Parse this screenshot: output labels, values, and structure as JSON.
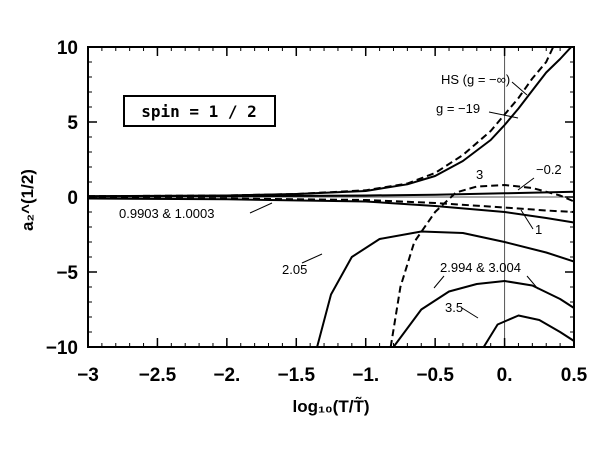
{
  "chart_data": {
    "type": "line",
    "xlabel": "log₁₀(T/T̃)",
    "ylabel": "a₂^(1/2)",
    "xlim": [
      -3,
      0.5
    ],
    "ylim": [
      -10,
      10
    ],
    "x_ticks": [
      -3,
      -2.5,
      -2,
      -1.5,
      -1,
      -0.5,
      0,
      0.5
    ],
    "x_tick_labels": [
      "−3",
      "−2.5",
      "−2.",
      "−1.5",
      "−1.",
      "−0.5",
      "0.",
      "0.5"
    ],
    "y_ticks": [
      -10,
      -5,
      0,
      5,
      10
    ],
    "y_tick_labels": [
      "−10",
      "−5",
      "0",
      "5",
      "10"
    ],
    "grid": false,
    "reference_lines": {
      "horizontal_y": 0,
      "vertical_x": 0
    },
    "box_annotation": "spin = 1 / 2",
    "series": [
      {
        "name": "HS (g = −∞)",
        "style": "dashed",
        "points": [
          [
            -3,
            0.05
          ],
          [
            -2,
            0.1
          ],
          [
            -1.5,
            0.2
          ],
          [
            -1,
            0.45
          ],
          [
            -0.7,
            0.9
          ],
          [
            -0.5,
            1.6
          ],
          [
            -0.3,
            2.8
          ],
          [
            -0.1,
            4.4
          ],
          [
            0,
            5.5
          ],
          [
            0.1,
            6.6
          ],
          [
            0.2,
            7.9
          ],
          [
            0.3,
            9.0
          ],
          [
            0.35,
            10
          ]
        ]
      },
      {
        "name": "g = −19",
        "style": "solid",
        "points": [
          [
            -3,
            0.05
          ],
          [
            -2,
            0.1
          ],
          [
            -1.5,
            0.2
          ],
          [
            -1,
            0.4
          ],
          [
            -0.7,
            0.85
          ],
          [
            -0.5,
            1.4
          ],
          [
            -0.3,
            2.4
          ],
          [
            -0.1,
            3.8
          ],
          [
            0,
            4.8
          ],
          [
            0.1,
            5.9
          ],
          [
            0.2,
            7.1
          ],
          [
            0.3,
            8.3
          ],
          [
            0.4,
            9.2
          ],
          [
            0.48,
            10
          ]
        ]
      },
      {
        "name": "−0.2",
        "style": "solid",
        "points": [
          [
            -3,
            0.05
          ],
          [
            -2,
            0.05
          ],
          [
            -1,
            0.1
          ],
          [
            -0.5,
            0.15
          ],
          [
            0,
            0.25
          ],
          [
            0.5,
            0.35
          ]
        ]
      },
      {
        "name": "3",
        "style": "dashed",
        "points": [
          [
            -0.82,
            -10
          ],
          [
            -0.75,
            -6
          ],
          [
            -0.65,
            -3
          ],
          [
            -0.5,
            -1
          ],
          [
            -0.35,
            0.3
          ],
          [
            -0.2,
            0.7
          ],
          [
            0,
            0.8
          ],
          [
            0.2,
            0.6
          ],
          [
            0.4,
            0.1
          ],
          [
            0.5,
            -0.3
          ]
        ]
      },
      {
        "name": "1",
        "style": "dashed",
        "points": [
          [
            -3,
            -0.05
          ],
          [
            -2,
            -0.1
          ],
          [
            -1,
            -0.2
          ],
          [
            -0.5,
            -0.4
          ],
          [
            0,
            -0.7
          ],
          [
            0.3,
            -0.9
          ],
          [
            0.5,
            -1.0
          ]
        ]
      },
      {
        "name": "0.9903 & 1.0003",
        "style": "solid",
        "points": [
          [
            -3,
            -0.1
          ],
          [
            -2,
            -0.15
          ],
          [
            -1,
            -0.3
          ],
          [
            -0.5,
            -0.6
          ],
          [
            0,
            -1.0
          ],
          [
            0.3,
            -1.4
          ],
          [
            0.5,
            -1.7
          ]
        ]
      },
      {
        "name": "2.05",
        "style": "solid",
        "points": [
          [
            -1.35,
            -10
          ],
          [
            -1.25,
            -6.5
          ],
          [
            -1.1,
            -4
          ],
          [
            -0.9,
            -2.8
          ],
          [
            -0.6,
            -2.3
          ],
          [
            -0.3,
            -2.4
          ],
          [
            0,
            -3.0
          ],
          [
            0.3,
            -3.7
          ],
          [
            0.5,
            -4.3
          ]
        ]
      },
      {
        "name": "2.994 & 3.004",
        "style": "solid",
        "points": [
          [
            -0.8,
            -10
          ],
          [
            -0.6,
            -7.5
          ],
          [
            -0.4,
            -6.3
          ],
          [
            -0.2,
            -5.8
          ],
          [
            0,
            -5.6
          ],
          [
            0.2,
            -5.9
          ],
          [
            0.4,
            -6.8
          ],
          [
            0.5,
            -7.4
          ]
        ]
      },
      {
        "name": "3.5",
        "style": "solid",
        "points": [
          [
            -0.15,
            -10
          ],
          [
            -0.05,
            -8.5
          ],
          [
            0.1,
            -7.9
          ],
          [
            0.25,
            -8.2
          ],
          [
            0.4,
            -9.0
          ],
          [
            0.5,
            -9.6
          ]
        ]
      }
    ]
  }
}
